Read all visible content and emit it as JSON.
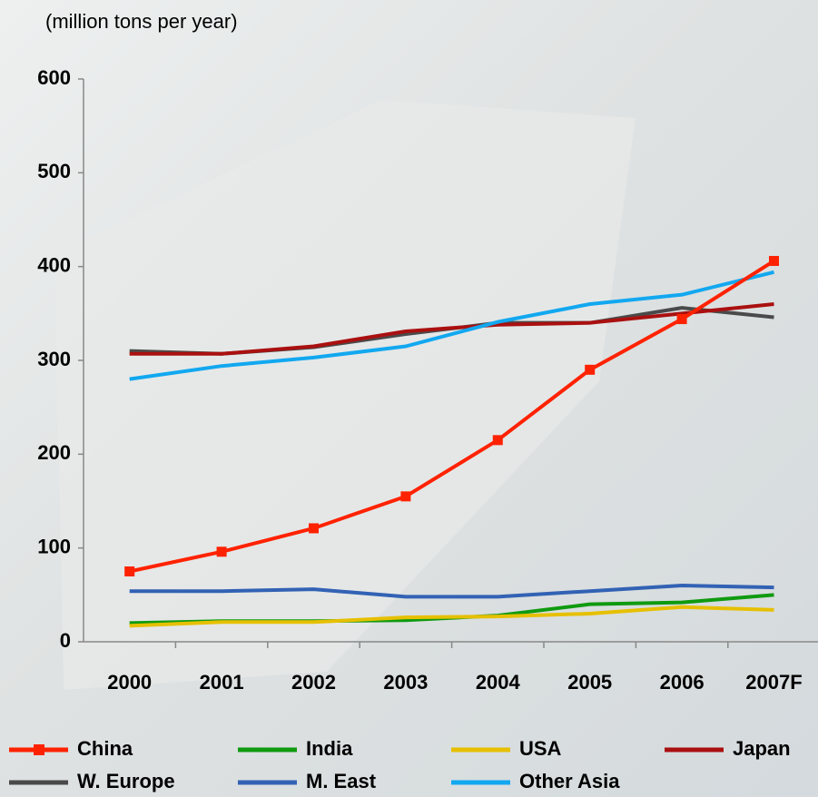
{
  "chart_data": {
    "type": "line",
    "y_label": "(million tons per year)",
    "categories": [
      "2000",
      "2001",
      "2002",
      "2003",
      "2004",
      "2005",
      "2006",
      "2007F"
    ],
    "ylim": [
      0,
      600
    ],
    "yticks": [
      0,
      100,
      200,
      300,
      400,
      500,
      600
    ],
    "series": [
      {
        "name": "China",
        "color": "#ff2200",
        "marker": "square",
        "values": [
          75,
          96,
          121,
          155,
          215,
          290,
          344,
          406
        ]
      },
      {
        "name": "India",
        "color": "#109a10",
        "values": [
          20,
          22,
          22,
          23,
          28,
          40,
          42,
          50
        ]
      },
      {
        "name": "USA",
        "color": "#e6c000",
        "values": [
          17,
          21,
          21,
          26,
          27,
          30,
          37,
          34
        ]
      },
      {
        "name": "Japan",
        "color": "#aa1010",
        "values": [
          307,
          307,
          315,
          331,
          338,
          340,
          350,
          360
        ]
      },
      {
        "name": "W. Europe",
        "color": "#4a4a4a",
        "values": [
          310,
          307,
          314,
          328,
          340,
          340,
          356,
          346
        ]
      },
      {
        "name": "M. East",
        "color": "#3262b4",
        "values": [
          54,
          54,
          56,
          48,
          48,
          54,
          60,
          58
        ]
      },
      {
        "name": "Other Asia",
        "color": "#12a8f0",
        "values": [
          280,
          294,
          303,
          315,
          341,
          360,
          370,
          394
        ]
      }
    ]
  }
}
